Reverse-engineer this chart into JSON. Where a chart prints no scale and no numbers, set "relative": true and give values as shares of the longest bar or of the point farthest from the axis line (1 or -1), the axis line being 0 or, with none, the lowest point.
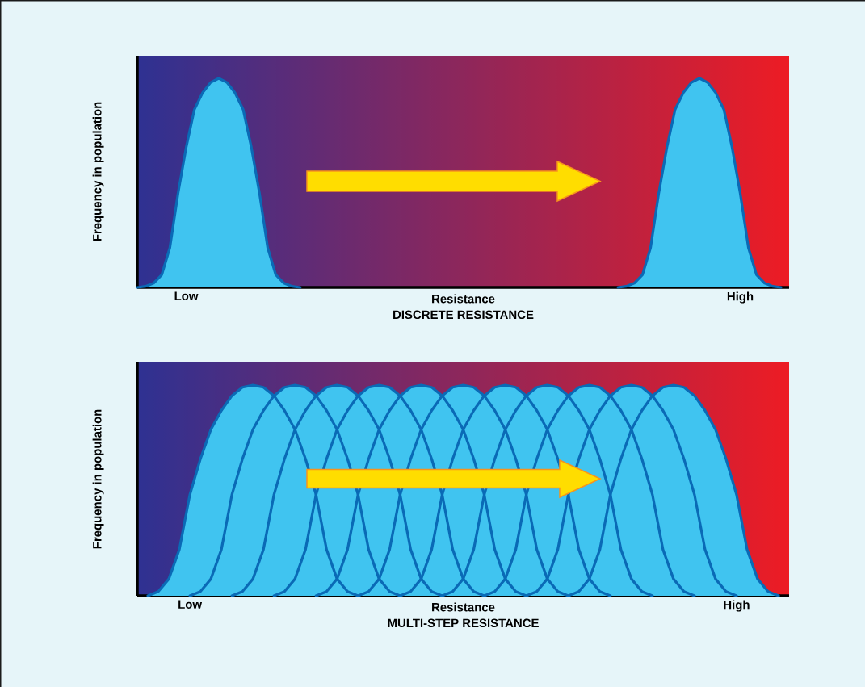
{
  "chart_data": [
    {
      "type": "area",
      "relative": true,
      "title": "DISCRETE RESISTANCE",
      "xlabel": "Resistance",
      "ylabel": "Frequency in population",
      "categories": [
        null,
        null,
        null,
        null,
        null,
        null,
        "Low",
        null,
        null,
        null,
        null,
        null,
        null,
        null,
        null,
        null,
        null,
        null,
        null,
        null,
        null,
        null,
        null,
        null,
        null,
        null,
        null,
        null,
        null,
        null,
        null,
        null,
        null,
        null,
        null,
        null,
        null,
        null,
        null,
        null,
        null,
        null,
        null,
        null,
        null,
        null,
        null,
        null,
        null,
        null,
        null,
        null,
        null,
        null,
        null,
        null,
        null,
        null,
        null,
        null,
        null,
        null,
        null,
        null,
        null,
        null,
        null,
        null,
        null,
        null,
        null,
        null,
        null,
        null,
        "High",
        null,
        null,
        null,
        null,
        null,
        null
      ],
      "series": [
        {
          "color": "#40c4f0",
          "values": [
            0,
            0.005,
            0.02,
            0.06,
            0.19,
            0.45,
            0.67,
            0.85,
            0.93,
            0.98,
            1,
            0.98,
            0.93,
            0.85,
            0.67,
            0.45,
            0.19,
            0.06,
            0.02,
            0.005,
            0,
            null,
            null,
            null,
            null,
            null,
            null,
            null,
            null,
            null,
            null,
            null,
            null,
            null,
            null,
            null,
            null,
            null,
            null,
            null,
            null,
            null,
            null,
            null,
            null,
            null,
            null,
            null,
            null,
            null,
            null,
            null,
            null,
            null,
            null,
            null,
            null,
            null,
            null,
            null,
            null,
            null,
            null,
            null,
            null,
            null,
            null,
            null,
            null,
            null,
            null,
            null,
            null,
            null,
            null,
            null,
            null,
            null,
            null,
            null,
            null
          ]
        },
        {
          "color": "#40c4f0",
          "values": [
            null,
            null,
            null,
            null,
            null,
            null,
            null,
            null,
            null,
            null,
            null,
            null,
            null,
            null,
            null,
            null,
            null,
            null,
            null,
            null,
            null,
            null,
            null,
            null,
            null,
            null,
            null,
            null,
            null,
            null,
            null,
            null,
            null,
            null,
            null,
            null,
            null,
            null,
            null,
            null,
            null,
            null,
            null,
            null,
            null,
            null,
            null,
            null,
            null,
            null,
            null,
            null,
            null,
            null,
            null,
            null,
            null,
            null,
            null,
            0,
            0.005,
            0.02,
            0.06,
            0.19,
            0.45,
            0.67,
            0.85,
            0.93,
            0.98,
            1,
            0.98,
            0.93,
            0.85,
            0.67,
            0.45,
            0.19,
            0.06,
            0.02,
            0.005,
            0,
            null
          ]
        }
      ]
    },
    {
      "type": "area",
      "relative": true,
      "title": "MULTI-STEP RESISTANCE",
      "xlabel": "Resistance",
      "ylabel": "Frequency in population",
      "categories": [
        null,
        null,
        null,
        null,
        null,
        "Low",
        null,
        null,
        null,
        null,
        null,
        null,
        null,
        null,
        null,
        null,
        null,
        null,
        null,
        null,
        null,
        null,
        null,
        null,
        null,
        null,
        null,
        null,
        null,
        null,
        null,
        null,
        null,
        null,
        null,
        null,
        null,
        null,
        null,
        null,
        null,
        null,
        null,
        null,
        null,
        null,
        null,
        null,
        null,
        null,
        null,
        null,
        null,
        null,
        null,
        null,
        null,
        "High",
        null,
        null,
        null,
        null,
        null
      ],
      "series": [
        {
          "color": "#40c4f0",
          "values": [
            null,
            0,
            0.02,
            0.08,
            0.22,
            0.48,
            0.65,
            0.79,
            0.88,
            0.95,
            0.99,
            1,
            0.99,
            0.95,
            0.88,
            0.79,
            0.65,
            0.48,
            0.22,
            0.08,
            0.02,
            0,
            null,
            null,
            null,
            null,
            null,
            null,
            null,
            null,
            null,
            null,
            null,
            null,
            null,
            null,
            null,
            null,
            null,
            null,
            null,
            null,
            null,
            null,
            null,
            null,
            null,
            null,
            null,
            null,
            null,
            null,
            null,
            null,
            null,
            null,
            null,
            null,
            null,
            null,
            null,
            null,
            null
          ]
        },
        {
          "color": "#40c4f0",
          "values": [
            null,
            null,
            null,
            null,
            null,
            0,
            0.02,
            0.08,
            0.22,
            0.48,
            0.65,
            0.79,
            0.88,
            0.95,
            0.99,
            1,
            0.99,
            0.95,
            0.88,
            0.79,
            0.65,
            0.48,
            0.22,
            0.08,
            0.02,
            0,
            null,
            null,
            null,
            null,
            null,
            null,
            null,
            null,
            null,
            null,
            null,
            null,
            null,
            null,
            null,
            null,
            null,
            null,
            null,
            null,
            null,
            null,
            null,
            null,
            null,
            null,
            null,
            null,
            null,
            null,
            null,
            null,
            null,
            null,
            null,
            null,
            null
          ]
        },
        {
          "color": "#40c4f0",
          "values": [
            null,
            null,
            null,
            null,
            null,
            null,
            null,
            null,
            null,
            0,
            0.02,
            0.08,
            0.22,
            0.48,
            0.65,
            0.79,
            0.88,
            0.95,
            0.99,
            1,
            0.99,
            0.95,
            0.88,
            0.79,
            0.65,
            0.48,
            0.22,
            0.08,
            0.02,
            0,
            null,
            null,
            null,
            null,
            null,
            null,
            null,
            null,
            null,
            null,
            null,
            null,
            null,
            null,
            null,
            null,
            null,
            null,
            null,
            null,
            null,
            null,
            null,
            null,
            null,
            null,
            null,
            null,
            null,
            null,
            null,
            null,
            null
          ]
        },
        {
          "color": "#40c4f0",
          "values": [
            null,
            null,
            null,
            null,
            null,
            null,
            null,
            null,
            null,
            null,
            null,
            null,
            null,
            0,
            0.02,
            0.08,
            0.22,
            0.48,
            0.65,
            0.79,
            0.88,
            0.95,
            0.99,
            1,
            0.99,
            0.95,
            0.88,
            0.79,
            0.65,
            0.48,
            0.22,
            0.08,
            0.02,
            0,
            null,
            null,
            null,
            null,
            null,
            null,
            null,
            null,
            null,
            null,
            null,
            null,
            null,
            null,
            null,
            null,
            null,
            null,
            null,
            null,
            null,
            null,
            null,
            null,
            null,
            null,
            null,
            null,
            null
          ]
        },
        {
          "color": "#40c4f0",
          "values": [
            null,
            null,
            null,
            null,
            null,
            null,
            null,
            null,
            null,
            null,
            null,
            null,
            null,
            null,
            null,
            null,
            null,
            0,
            0.02,
            0.08,
            0.22,
            0.48,
            0.65,
            0.79,
            0.88,
            0.95,
            0.99,
            1,
            0.99,
            0.95,
            0.88,
            0.79,
            0.65,
            0.48,
            0.22,
            0.08,
            0.02,
            0,
            null,
            null,
            null,
            null,
            null,
            null,
            null,
            null,
            null,
            null,
            null,
            null,
            null,
            null,
            null,
            null,
            null,
            null,
            null,
            null,
            null,
            null,
            null,
            null,
            null
          ]
        },
        {
          "color": "#40c4f0",
          "values": [
            null,
            null,
            null,
            null,
            null,
            null,
            null,
            null,
            null,
            null,
            null,
            null,
            null,
            null,
            null,
            null,
            null,
            null,
            null,
            null,
            null,
            0,
            0.02,
            0.08,
            0.22,
            0.48,
            0.65,
            0.79,
            0.88,
            0.95,
            0.99,
            1,
            0.99,
            0.95,
            0.88,
            0.79,
            0.65,
            0.48,
            0.22,
            0.08,
            0.02,
            0,
            null,
            null,
            null,
            null,
            null,
            null,
            null,
            null,
            null,
            null,
            null,
            null,
            null,
            null,
            null,
            null,
            null,
            null,
            null,
            null,
            null
          ]
        },
        {
          "color": "#40c4f0",
          "values": [
            null,
            null,
            null,
            null,
            null,
            null,
            null,
            null,
            null,
            null,
            null,
            null,
            null,
            null,
            null,
            null,
            null,
            null,
            null,
            null,
            null,
            null,
            null,
            null,
            null,
            0,
            0.02,
            0.08,
            0.22,
            0.48,
            0.65,
            0.79,
            0.88,
            0.95,
            0.99,
            1,
            0.99,
            0.95,
            0.88,
            0.79,
            0.65,
            0.48,
            0.22,
            0.08,
            0.02,
            0,
            null,
            null,
            null,
            null,
            null,
            null,
            null,
            null,
            null,
            null,
            null,
            null,
            null,
            null,
            null,
            null,
            null
          ]
        },
        {
          "color": "#40c4f0",
          "values": [
            null,
            null,
            null,
            null,
            null,
            null,
            null,
            null,
            null,
            null,
            null,
            null,
            null,
            null,
            null,
            null,
            null,
            null,
            null,
            null,
            null,
            null,
            null,
            null,
            null,
            null,
            null,
            null,
            null,
            0,
            0.02,
            0.08,
            0.22,
            0.48,
            0.65,
            0.79,
            0.88,
            0.95,
            0.99,
            1,
            0.99,
            0.95,
            0.88,
            0.79,
            0.65,
            0.48,
            0.22,
            0.08,
            0.02,
            0,
            null,
            null,
            null,
            null,
            null,
            null,
            null,
            null,
            null,
            null,
            null,
            null,
            null
          ]
        },
        {
          "color": "#40c4f0",
          "values": [
            null,
            null,
            null,
            null,
            null,
            null,
            null,
            null,
            null,
            null,
            null,
            null,
            null,
            null,
            null,
            null,
            null,
            null,
            null,
            null,
            null,
            null,
            null,
            null,
            null,
            null,
            null,
            null,
            null,
            null,
            null,
            null,
            null,
            0,
            0.02,
            0.08,
            0.22,
            0.48,
            0.65,
            0.79,
            0.88,
            0.95,
            0.99,
            1,
            0.99,
            0.95,
            0.88,
            0.79,
            0.65,
            0.48,
            0.22,
            0.08,
            0.02,
            0,
            null,
            null,
            null,
            null,
            null,
            null,
            null,
            null,
            null
          ]
        },
        {
          "color": "#40c4f0",
          "values": [
            null,
            null,
            null,
            null,
            null,
            null,
            null,
            null,
            null,
            null,
            null,
            null,
            null,
            null,
            null,
            null,
            null,
            null,
            null,
            null,
            null,
            null,
            null,
            null,
            null,
            null,
            null,
            null,
            null,
            null,
            null,
            null,
            null,
            null,
            null,
            null,
            null,
            0,
            0.02,
            0.08,
            0.22,
            0.48,
            0.65,
            0.79,
            0.88,
            0.95,
            0.99,
            1,
            0.99,
            0.95,
            0.88,
            0.79,
            0.65,
            0.48,
            0.22,
            0.08,
            0.02,
            0,
            null,
            null,
            null,
            null,
            null
          ]
        },
        {
          "color": "#40c4f0",
          "values": [
            null,
            null,
            null,
            null,
            null,
            null,
            null,
            null,
            null,
            null,
            null,
            null,
            null,
            null,
            null,
            null,
            null,
            null,
            null,
            null,
            null,
            null,
            null,
            null,
            null,
            null,
            null,
            null,
            null,
            null,
            null,
            null,
            null,
            null,
            null,
            null,
            null,
            null,
            null,
            null,
            null,
            0,
            0.02,
            0.08,
            0.22,
            0.48,
            0.65,
            0.79,
            0.88,
            0.95,
            0.99,
            1,
            0.99,
            0.95,
            0.88,
            0.79,
            0.65,
            0.48,
            0.22,
            0.08,
            0.02,
            0,
            null
          ]
        }
      ]
    }
  ]
}
